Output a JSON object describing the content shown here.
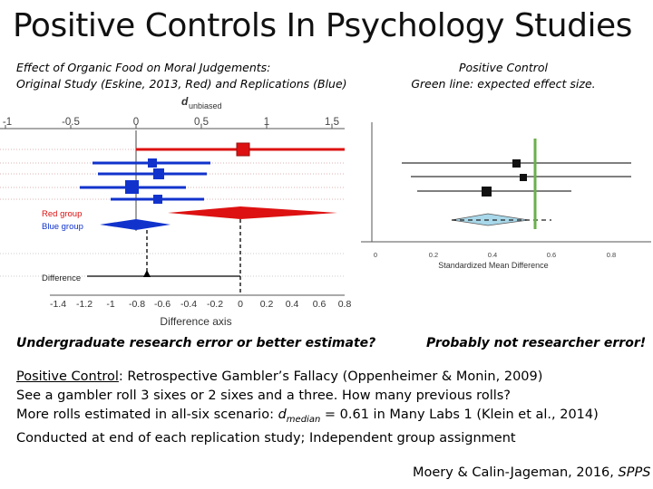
{
  "slide": {
    "title": "Positive Controls In Psychology Studies",
    "left_caption_line1": "Effect of Organic Food on Moral Judgements:",
    "left_caption_line2": "Original Study (Eskine, 2013, Red) and Replications (Blue)",
    "right_caption_line1": "Positive Control",
    "right_caption_line2": "Green line: expected effect size.",
    "left_question": "Undergraduate research error or better estimate?",
    "right_question": "Probably not researcher error!",
    "body_line1_label": "Positive Control",
    "body_line1_rest": ": Retrospective Gambler’s Fallacy (Oppenheimer & Monin, 2009)",
    "body_line2": "See a gambler roll 3 sixes or 2 sixes and a three.  How many previous rolls?",
    "body_line3_pre": "More rolls estimated in all-six scenario: ",
    "body_line3_d": "d",
    "body_line3_sub": "median",
    "body_line3_post": " = 0.61 in Many Labs 1 (Klein et al., 2014)",
    "body_line4": "Conducted at end of each replication study; Independent group assignment",
    "citation_authors": "Moery & Calin-Jageman, 2016, ",
    "citation_journal": "SPPS"
  },
  "left_plot": {
    "title_d": "d",
    "title_sub": "unbiased",
    "top_ticks": [
      "-1",
      "-0.5",
      "0",
      "0.5",
      "1",
      "1.5"
    ],
    "legend_red": "Red group",
    "legend_blue": "Blue group",
    "difference_label": "Difference",
    "bottom_ticks": [
      "-1.4",
      "-1.2",
      "-1",
      "-0.8",
      "-0.6",
      "-0.4",
      "-0.2",
      "0",
      "0.2",
      "0.4",
      "0.6",
      "0.8"
    ],
    "axis_label": "Difference axis",
    "colors": {
      "red": "#dd1111",
      "blue": "#1133cc",
      "black": "#000000"
    }
  },
  "right_plot": {
    "ticks": [
      "0",
      "0.2",
      "0.4",
      "0.6",
      "0.8"
    ],
    "axis_label": "Standardized Mean Difference",
    "colors": {
      "green": "#6ab04c",
      "diamond": "#a8d8ea"
    }
  }
}
